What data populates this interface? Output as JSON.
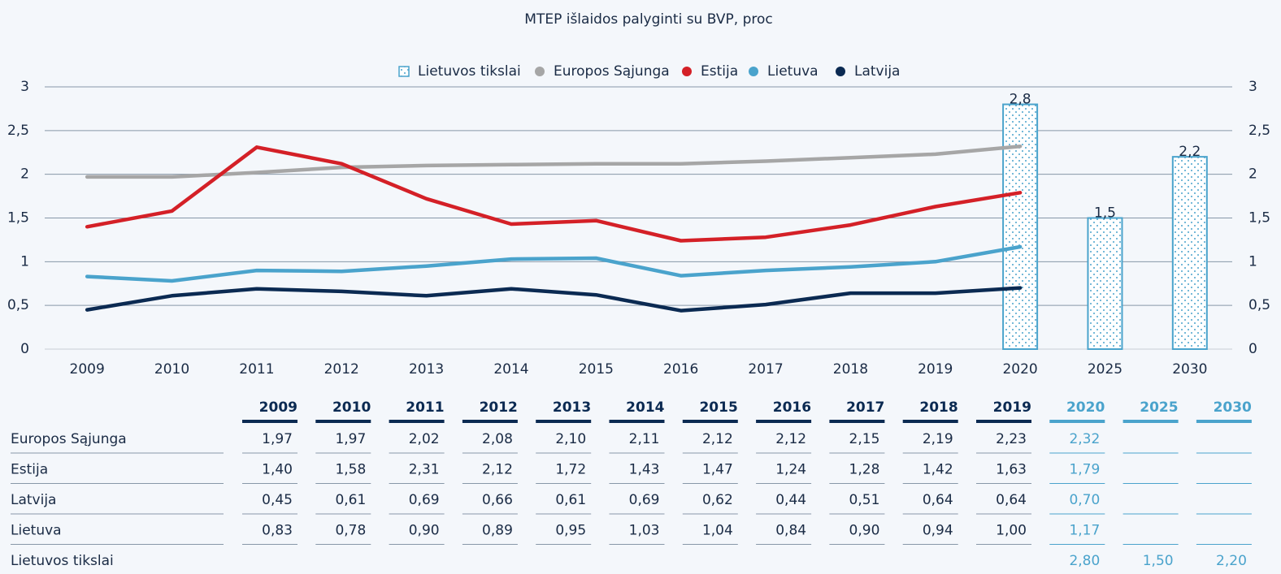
{
  "chart_data": {
    "type": "line",
    "title": "MTEP išlaidos palyginti su BVP, proc",
    "categories": [
      "2009",
      "2010",
      "2011",
      "2012",
      "2013",
      "2014",
      "2015",
      "2016",
      "2017",
      "2018",
      "2019",
      "2020",
      "2025",
      "2030"
    ],
    "series": [
      {
        "name": "Lietuvos tikslai",
        "type": "bar",
        "color": "#4aa3cc",
        "values": [
          null,
          null,
          null,
          null,
          null,
          null,
          null,
          null,
          null,
          null,
          null,
          2.8,
          1.5,
          2.2
        ],
        "value_labels": [
          null,
          null,
          null,
          null,
          null,
          null,
          null,
          null,
          null,
          null,
          null,
          "2,8",
          "1,5",
          "2,2"
        ]
      },
      {
        "name": "Europos Sąjunga",
        "type": "line",
        "color": "#a6a6a6",
        "values": [
          1.97,
          1.97,
          2.02,
          2.08,
          2.1,
          2.11,
          2.12,
          2.12,
          2.15,
          2.19,
          2.23,
          2.32,
          null,
          null
        ]
      },
      {
        "name": "Estija",
        "type": "line",
        "color": "#d42027",
        "values": [
          1.4,
          1.58,
          2.31,
          2.12,
          1.72,
          1.43,
          1.47,
          1.24,
          1.28,
          1.42,
          1.63,
          1.79,
          null,
          null
        ]
      },
      {
        "name": "Lietuva",
        "type": "line",
        "color": "#4aa3cc",
        "values": [
          0.83,
          0.78,
          0.9,
          0.89,
          0.95,
          1.03,
          1.04,
          0.84,
          0.9,
          0.94,
          1.0,
          1.17,
          null,
          null
        ]
      },
      {
        "name": "Latvija",
        "type": "line",
        "color": "#0b2a52",
        "values": [
          0.45,
          0.61,
          0.69,
          0.66,
          0.61,
          0.69,
          0.62,
          0.44,
          0.51,
          0.64,
          0.64,
          0.7,
          null,
          null
        ]
      }
    ],
    "ylim": [
      0,
      3
    ],
    "yticks": [
      0,
      {
        "value": 0.5,
        "label": "0,5"
      },
      1,
      {
        "value": 1.5,
        "label": "1,5"
      },
      2,
      {
        "value": 2.5,
        "label": "2,5"
      },
      3
    ],
    "y2lim": [
      0,
      3
    ],
    "y2ticks": [
      0,
      {
        "value": 0.5,
        "label": "0,5"
      },
      1,
      {
        "value": 1.5,
        "label": "1,5"
      },
      2,
      {
        "value": 2.5,
        "label": "2,5"
      },
      3
    ],
    "grid": true,
    "legend": "top",
    "table": {
      "rows": [
        {
          "name": "Europos Sąjunga",
          "cells": [
            "1,97",
            "1,97",
            "2,02",
            "2,08",
            "2,10",
            "2,11",
            "2,12",
            "2,12",
            "2,15",
            "2,19",
            "2,23",
            "2,32",
            null,
            null
          ]
        },
        {
          "name": "Estija",
          "cells": [
            "1,40",
            "1,58",
            "2,31",
            "2,12",
            "1,72",
            "1,43",
            "1,47",
            "1,24",
            "1,28",
            "1,42",
            "1,63",
            "1,79",
            null,
            null
          ]
        },
        {
          "name": "Latvija",
          "cells": [
            "0,45",
            "0,61",
            "0,69",
            "0,66",
            "0,61",
            "0,69",
            "0,62",
            "0,44",
            "0,51",
            "0,64",
            "0,64",
            "0,70",
            null,
            null
          ]
        },
        {
          "name": "Lietuva",
          "cells": [
            "0,83",
            "0,78",
            "0,90",
            "0,89",
            "0,95",
            "1,03",
            "1,04",
            "0,84",
            "0,90",
            "0,94",
            "1,00",
            "1,17",
            null,
            null
          ]
        },
        {
          "name": "Lietuvos tikslai",
          "cells": [
            null,
            null,
            null,
            null,
            null,
            null,
            null,
            null,
            null,
            null,
            null,
            "2,80",
            "1,50",
            "2,20"
          ]
        }
      ]
    }
  }
}
